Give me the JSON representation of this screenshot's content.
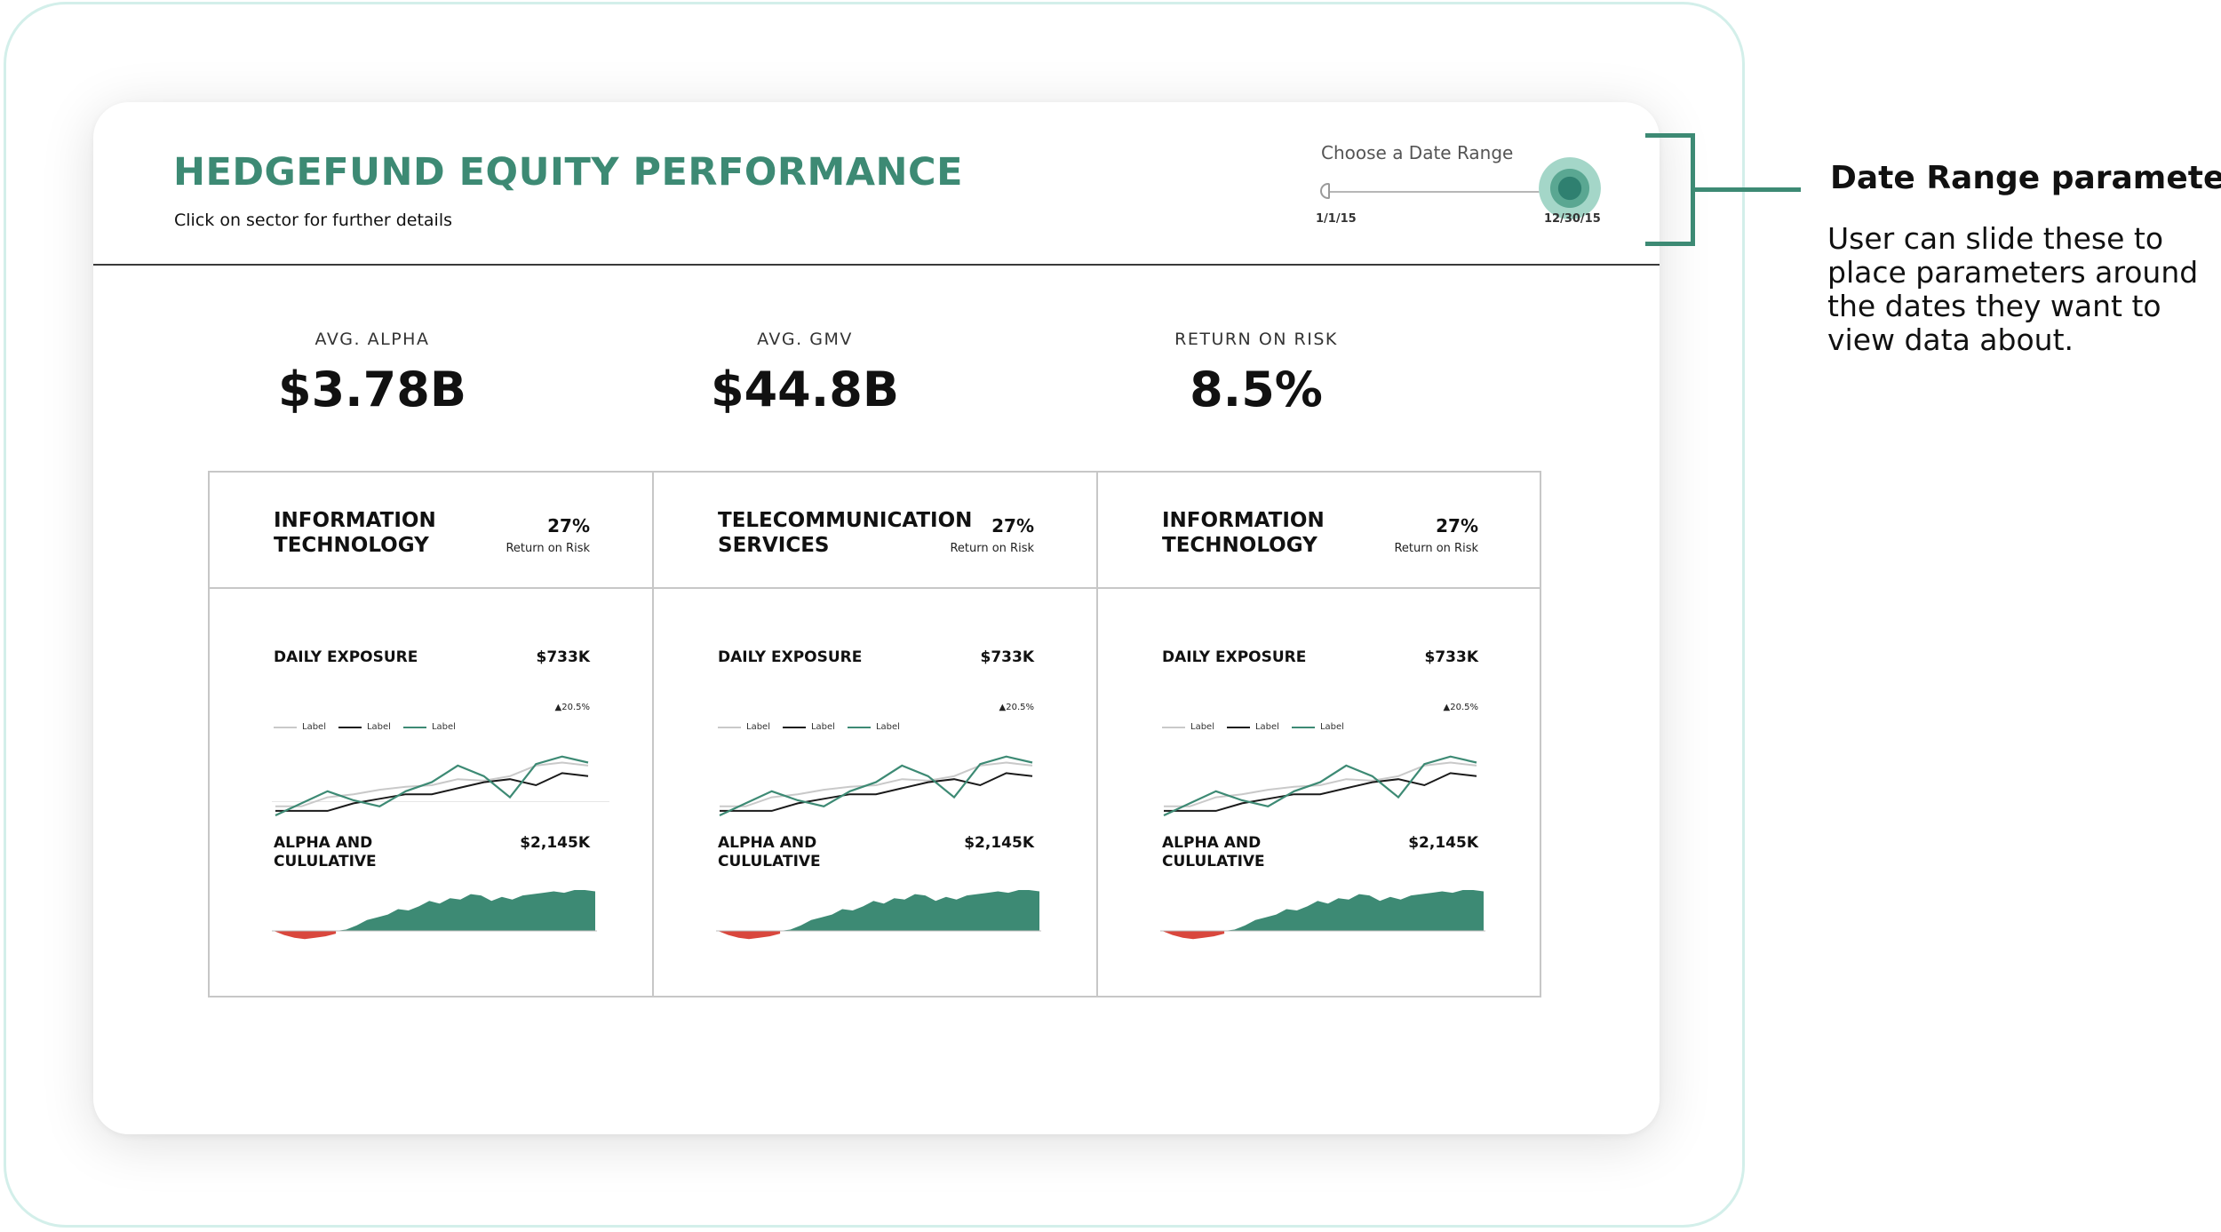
{
  "dashboard": {
    "title": "HEDGEFUND EQUITY PERFORMANCE",
    "subtitle": "Click on sector for further details"
  },
  "date_range": {
    "label": "Choose a Date Range",
    "start": "1/1/15",
    "end": "12/30/15"
  },
  "kpis": [
    {
      "label": "AVG. ALPHA",
      "value": "$3.78B"
    },
    {
      "label": "AVG. GMV",
      "value": "$44.8B"
    },
    {
      "label": "RETURN ON RISK",
      "value": "8.5%"
    }
  ],
  "sectors": [
    {
      "name": "INFORMATION TECHNOLOGY",
      "return_pct": "27%",
      "return_label": "Return on Risk",
      "exposure_title": "DAILY EXPOSURE",
      "exposure_value": "$733K",
      "exposure_delta": "▲20.5%",
      "alpha_title": "ALPHA AND CULULATIVE",
      "alpha_value": "$2,145K"
    },
    {
      "name": "TELECOMMUNICATION SERVICES",
      "return_pct": "27%",
      "return_label": "Return on Risk",
      "exposure_title": "DAILY EXPOSURE",
      "exposure_value": "$733K",
      "exposure_delta": "▲20.5%",
      "alpha_title": "ALPHA AND CULULATIVE",
      "alpha_value": "$2,145K"
    },
    {
      "name": "INFORMATION TECHNOLOGY",
      "return_pct": "27%",
      "return_label": "Return on Risk",
      "exposure_title": "DAILY EXPOSURE",
      "exposure_value": "$733K",
      "exposure_delta": "▲20.5%",
      "alpha_title": "ALPHA AND CULULATIVE",
      "alpha_value": "$2,145K"
    }
  ],
  "legend": [
    {
      "label": "Label",
      "color": "#c9c9c9"
    },
    {
      "label": "Label",
      "color": "#1a1a1a"
    },
    {
      "label": "Label",
      "color": "#3d8a74"
    }
  ],
  "annotation": {
    "title": "Date Range parameters",
    "body": "User can slide these to place parameters around the dates they want to view data about."
  },
  "colors": {
    "accent": "#3d8a74",
    "negative": "#d9473d",
    "frame": "#d3efea"
  },
  "chart_data": [
    {
      "type": "line",
      "series": [
        {
          "values": [
            6,
            6,
            12,
            14,
            17,
            19,
            20,
            24,
            23,
            26,
            33,
            35,
            33
          ]
        },
        {
          "values": [
            3,
            3,
            3,
            8,
            11,
            14,
            14,
            18,
            22,
            24,
            20,
            28,
            26
          ]
        },
        {
          "values": [
            0,
            8,
            16,
            10,
            6,
            16,
            22,
            33,
            26,
            12,
            34,
            39,
            35
          ]
        }
      ]
    },
    {
      "type": "area",
      "values": [
        0,
        -3,
        -5,
        -6,
        -5,
        -4,
        -2,
        1,
        4,
        8,
        10,
        12,
        16,
        15,
        18,
        22,
        20,
        24,
        23,
        27,
        26,
        22,
        25,
        23,
        26,
        27,
        28,
        29,
        28,
        30,
        30,
        29
      ]
    }
  ]
}
